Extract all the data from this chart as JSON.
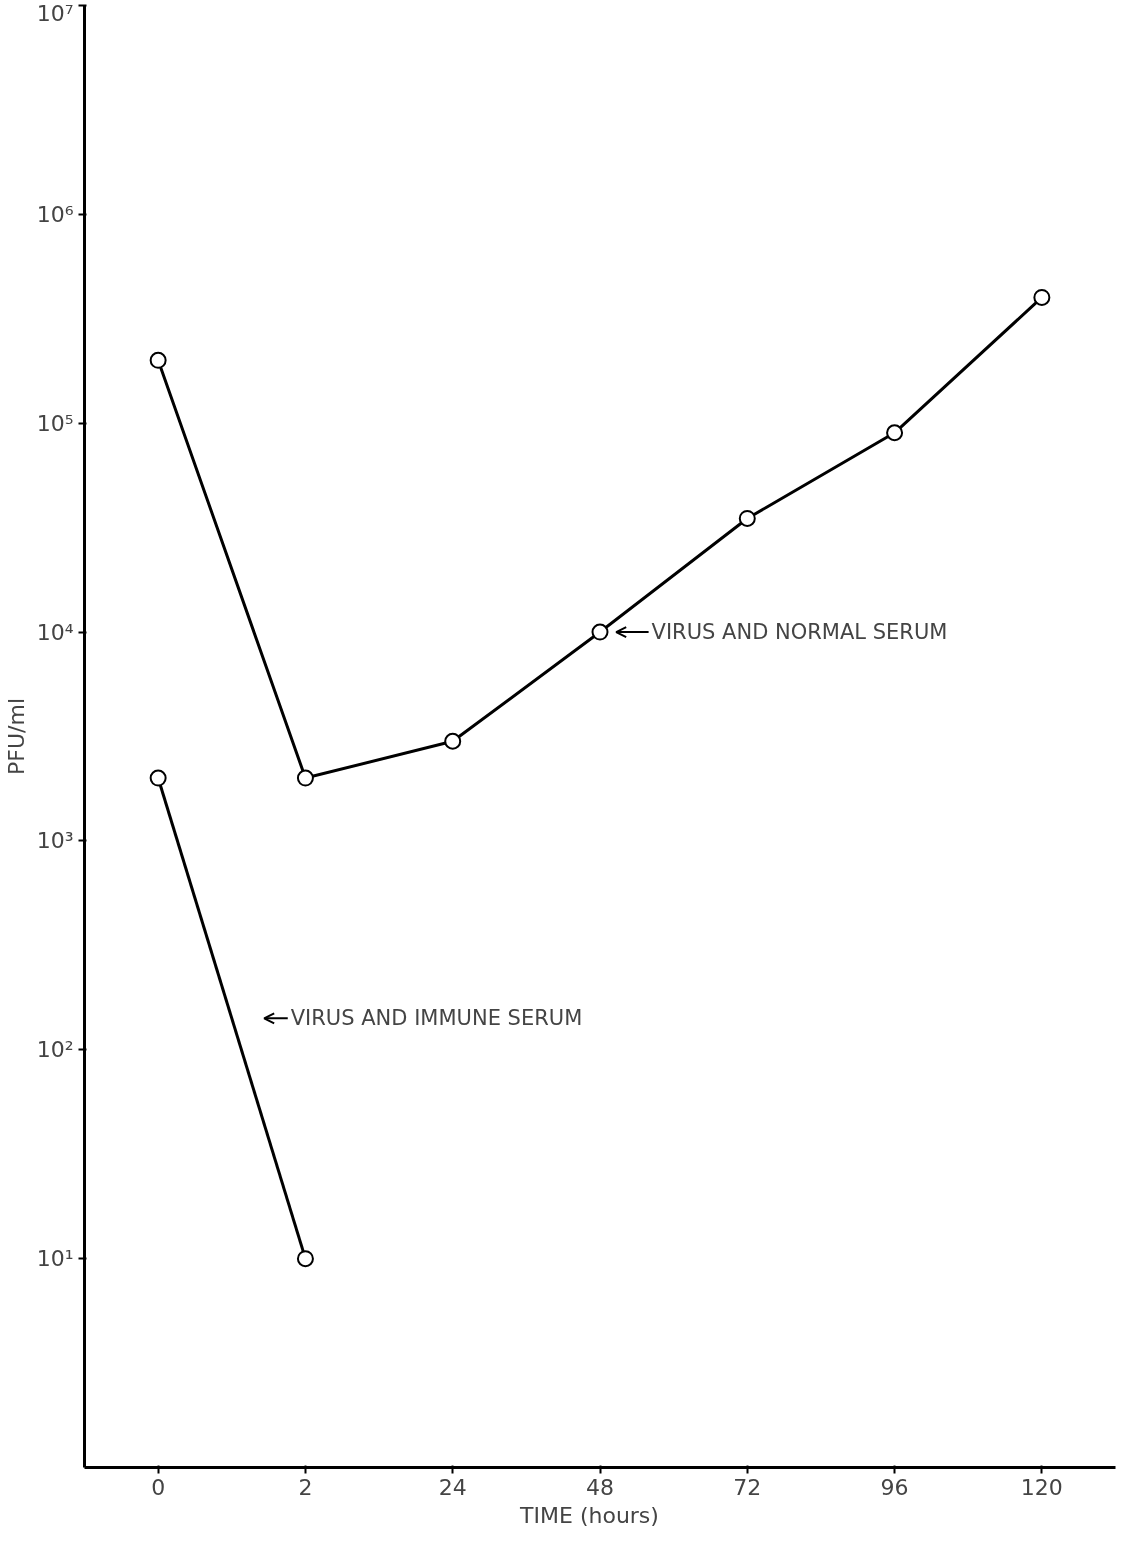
{
  "chart_data": {
    "type": "line",
    "xlabel": "TIME    (hours)",
    "ylabel": "PFU/ml",
    "categories": [
      "0",
      "2",
      "24",
      "48",
      "72",
      "96",
      "120"
    ],
    "series": [
      {
        "color": "#000000",
        "values": [
          200000,
          2000,
          3000,
          10000,
          35000,
          90000,
          400000
        ]
      },
      {
        "color": "#000000",
        "values": [
          2000,
          10,
          null,
          null,
          null,
          null,
          null
        ]
      }
    ],
    "log": "y",
    "ylim": [
      1,
      10000000
    ],
    "yticks": [
      {
        "value": 10,
        "label": "10¹"
      },
      {
        "value": 100,
        "label": "10²"
      },
      {
        "value": 1000,
        "label": "10³"
      },
      {
        "value": 10000,
        "label": "10⁴"
      },
      {
        "value": 100000,
        "label": "10⁵"
      },
      {
        "value": 1000000,
        "label": "10⁶"
      },
      {
        "value": 10000000,
        "label": "10⁷"
      }
    ],
    "annotations": [
      {
        "text": "VIRUS AND NORMAL SERUM",
        "x": "48",
        "y": 10000
      },
      "VIRUS AND IMMUNE SERUM"
    ],
    "grid": false,
    "marker": "circle",
    "line_style": "solid"
  }
}
